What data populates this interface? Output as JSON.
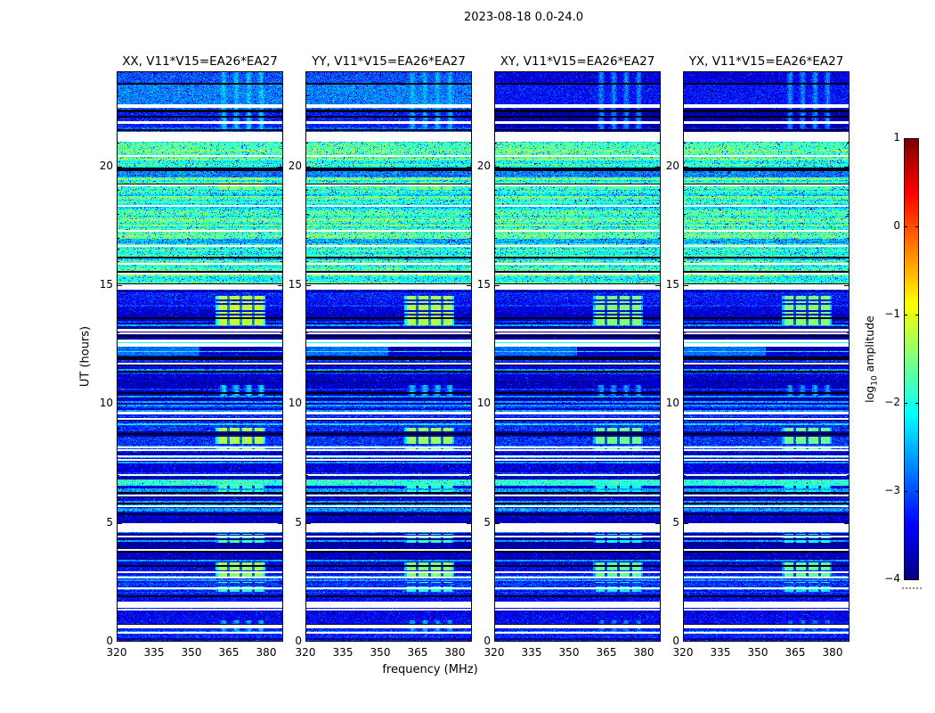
{
  "title": "2023-08-18 0.0-24.0",
  "colors": {
    "background": "#ffffff",
    "axes": "#000000"
  },
  "chart_data": {
    "type": "heatmap",
    "suptitle": "2023-08-18 0.0-24.0",
    "xlabel": "frequency (MHz)",
    "ylabel": "UT (hours)",
    "x_range_mhz": [
      320,
      386.8
    ],
    "xticks": [
      320,
      335,
      350,
      365,
      380
    ],
    "x_minor_step_mhz": 5,
    "y_range_hours": [
      0,
      24
    ],
    "yticks": [
      0,
      5,
      10,
      15,
      20
    ],
    "y_minor_step_hours": 1,
    "panels": [
      {
        "pol": "XX",
        "title": "XX, V11*V15=EA26*EA27",
        "seed": 101,
        "top_level_adj": 0,
        "rfi_level_adj": 0
      },
      {
        "pol": "YY",
        "title": "YY, V11*V15=EA26*EA27",
        "seed": 202,
        "top_level_adj": 0,
        "rfi_level_adj": -0.08
      },
      {
        "pol": "XY",
        "title": "XY, V11*V15=EA26*EA27",
        "seed": 303,
        "top_level_adj": -0.55,
        "rfi_level_adj": -0.28
      },
      {
        "pol": "YX",
        "title": "YX, V11*V15=EA26*EA27",
        "seed": 404,
        "top_level_adj": -0.55,
        "rfi_level_adj": -0.28
      }
    ],
    "colorbar": {
      "label": "log10 amplitude",
      "label_parts": {
        "pre": "log",
        "sub": "10",
        "post": " amplitude"
      },
      "ticks": [
        1,
        0,
        -1,
        -2,
        -3,
        -4
      ],
      "vmin": -4,
      "vmax": 1,
      "colormap": "jet"
    },
    "regions": {
      "top": {
        "t": [
          21.45,
          24.0
        ],
        "base": -2.88,
        "sub_bands": [
          {
            "t": [
              23.5,
              24.0
            ],
            "base": -2.98
          },
          {
            "t": [
              22.62,
              23.42
            ],
            "base": -2.76
          },
          {
            "t": [
              21.62,
              22.28
            ],
            "base": -3.25
          }
        ]
      },
      "green": {
        "t": [
          15.07,
          21.05
        ],
        "base": -1.7
      },
      "lower": {
        "t": [
          0.0,
          15.07
        ],
        "base": -3.5
      }
    },
    "white_gaps": [
      [
        22.48,
        22.58
      ],
      [
        21.82,
        21.87
      ],
      [
        21.05,
        21.45
      ],
      [
        20.43,
        20.47
      ],
      [
        19.18,
        19.22
      ],
      [
        18.33,
        18.37
      ],
      [
        17.28,
        17.32
      ],
      [
        16.63,
        16.67
      ],
      [
        15.88,
        15.92
      ],
      [
        15.48,
        15.52
      ],
      [
        14.85,
        15.02
      ],
      [
        13.08,
        13.14
      ],
      [
        12.94,
        12.98
      ],
      [
        12.45,
        12.68
      ],
      [
        11.68,
        11.72
      ],
      [
        9.58,
        9.66
      ],
      [
        9.35,
        9.4
      ],
      [
        8.15,
        8.2
      ],
      [
        8.03,
        8.07
      ],
      [
        7.78,
        7.83
      ],
      [
        7.62,
        7.66
      ],
      [
        6.98,
        7.02
      ],
      [
        6.13,
        6.18
      ],
      [
        5.68,
        5.72
      ],
      [
        4.63,
        4.97
      ],
      [
        4.4,
        4.44
      ],
      [
        3.84,
        3.88
      ],
      [
        2.9,
        2.94
      ],
      [
        2.68,
        2.72
      ],
      [
        2.23,
        2.27
      ],
      [
        1.45,
        1.66
      ],
      [
        1.32,
        1.36
      ],
      [
        0.58,
        0.68
      ],
      [
        0.35,
        0.39
      ]
    ],
    "cyan_row_in_gap": [
      12.55,
      12.6
    ],
    "rfi_band_mhz": [
      359.3,
      379.6
    ],
    "rfi_column_gaps_mhz": [
      364.7,
      369.7,
      374.7
    ],
    "rfi_events": [
      {
        "t": [
          21.5,
          23.95
        ],
        "level": -2.45,
        "style": "soft"
      },
      {
        "t": [
          19.0,
          19.55
        ],
        "level": -1.45,
        "style": "strong"
      },
      {
        "t": [
          13.3,
          14.55
        ],
        "level": -1.2,
        "style": "strong"
      },
      {
        "t": [
          10.35,
          10.8
        ],
        "level": -2.35,
        "style": "soft"
      },
      {
        "t": [
          7.95,
          9.05
        ],
        "level": -1.3,
        "style": "strong"
      },
      {
        "t": [
          6.25,
          6.65
        ],
        "level": -1.85,
        "style": "strong"
      },
      {
        "t": [
          4.15,
          4.55
        ],
        "level": -1.8,
        "style": "strong"
      },
      {
        "t": [
          2.75,
          3.35
        ],
        "level": -1.4,
        "style": "strong"
      },
      {
        "t": [
          2.05,
          2.5
        ],
        "level": -1.9,
        "style": "strong"
      },
      {
        "t": [
          0.35,
          0.9
        ],
        "level": -2.5,
        "style": "soft"
      }
    ],
    "dark_bands": [
      {
        "t": [
          19.55,
          19.95
        ],
        "level": -2.7
      },
      {
        "t": [
          16.75,
          16.95
        ],
        "level": -2.5
      }
    ],
    "bright_rows": [
      {
        "t": [
          6.55,
          6.85
        ],
        "level": -1.95
      },
      {
        "t": [
          12.18,
          12.24
        ],
        "level": -2.15
      },
      {
        "t": [
          9.12,
          9.17
        ],
        "level": -2.3
      }
    ],
    "black_bands": [
      [
        23.42,
        23.5
      ],
      [
        22.28,
        22.4
      ],
      [
        21.5,
        21.58
      ]
    ],
    "light_patch": {
      "t": [
        12.05,
        12.42
      ],
      "f_max_mhz": 353,
      "level": -2.85
    }
  }
}
